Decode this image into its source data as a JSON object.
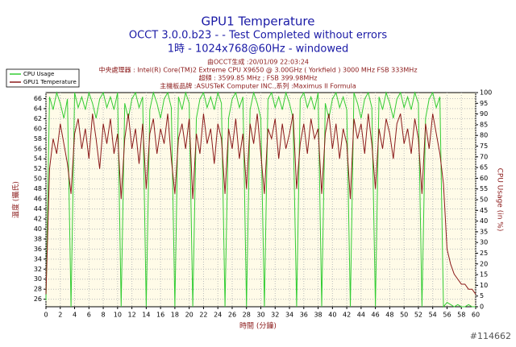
{
  "chart_data": {
    "type": "line",
    "title": "GPU1 Temperature",
    "subtitle": [
      "OCCT 3.0.0.b23 -  - Test Completed without errors",
      "1時 - 1024x768@60Hz - windowed"
    ],
    "info": [
      "由OCCT生成 :20/01/09 22:03:24",
      "中央處理器 : Intel(R) Core(TM)2 Extreme CPU X9650 @ 3.00GHz ( Yorkfield ) 3000 MHz FSB 333MHz",
      "超頻 : 3599.85 MHz ; FSB 399.98MHz",
      "主機板品牌 :ASUSTeK Computer INC.,系列 :Maximus II Formula"
    ],
    "xlabel": "時間 (分鐘)",
    "ylabel": "溫度 (攝氏)",
    "y2label": "CPU Usage (in %)",
    "watermark": "#114662",
    "xlim": [
      0,
      60
    ],
    "xticks": [
      0,
      2,
      4,
      6,
      8,
      10,
      12,
      14,
      16,
      18,
      20,
      22,
      24,
      26,
      28,
      30,
      32,
      34,
      36,
      38,
      40,
      42,
      44,
      46,
      48,
      50,
      52,
      54,
      56,
      58,
      60
    ],
    "ylim": [
      24.5,
      67.2
    ],
    "yticks": [
      26,
      28,
      30,
      32,
      34,
      36,
      38,
      40,
      42,
      44,
      46,
      48,
      50,
      52,
      54,
      56,
      58,
      60,
      62,
      64,
      66
    ],
    "y2lim": [
      0,
      100
    ],
    "y2ticks": [
      0,
      5,
      10,
      15,
      20,
      25,
      30,
      35,
      40,
      45,
      50,
      55,
      60,
      65,
      70,
      75,
      80,
      85,
      90,
      95,
      100
    ],
    "grid": true,
    "legend": "top-left",
    "x": [
      0,
      0.5,
      1,
      1.5,
      2,
      2.5,
      3,
      3.5,
      4,
      4.5,
      5,
      5.5,
      6,
      6.5,
      7,
      7.5,
      8,
      8.5,
      9,
      9.5,
      10,
      10.5,
      11,
      11.5,
      12,
      12.5,
      13,
      13.5,
      14,
      14.5,
      15,
      15.5,
      16,
      16.5,
      17,
      17.5,
      18,
      18.5,
      19,
      19.5,
      20,
      20.5,
      21,
      21.5,
      22,
      22.5,
      23,
      23.5,
      24,
      24.5,
      25,
      25.5,
      26,
      26.5,
      27,
      27.5,
      28,
      28.5,
      29,
      29.5,
      30,
      30.5,
      31,
      31.5,
      32,
      32.5,
      33,
      33.5,
      34,
      34.5,
      35,
      35.5,
      36,
      36.5,
      37,
      37.5,
      38,
      38.5,
      39,
      39.5,
      40,
      40.5,
      41,
      41.5,
      42,
      42.5,
      43,
      43.5,
      44,
      44.5,
      45,
      45.5,
      46,
      46.5,
      47,
      47.5,
      48,
      48.5,
      49,
      49.5,
      50,
      50.5,
      51,
      51.5,
      52,
      52.5,
      53,
      53.5,
      54,
      54.5,
      55,
      55.5,
      56,
      56.5,
      57,
      57.5,
      58,
      58.5,
      59,
      59.5,
      60
    ],
    "series": [
      {
        "name": "CPU Usage",
        "color": "#33cc33",
        "axis": "y2",
        "values": [
          3,
          98,
          92,
          100,
          95,
          88,
          97,
          0,
          100,
          93,
          98,
          92,
          100,
          95,
          88,
          97,
          100,
          93,
          98,
          92,
          100,
          0,
          95,
          88,
          97,
          100,
          93,
          98,
          0,
          92,
          100,
          95,
          88,
          97,
          100,
          93,
          0,
          98,
          92,
          100,
          95,
          0,
          88,
          97,
          100,
          93,
          98,
          92,
          100,
          95,
          0,
          88,
          97,
          100,
          93,
          98,
          0,
          92,
          100,
          95,
          88,
          0,
          97,
          100,
          93,
          98,
          92,
          100,
          95,
          88,
          0,
          97,
          100,
          93,
          98,
          92,
          100,
          0,
          95,
          88,
          97,
          100,
          93,
          98,
          92,
          0,
          100,
          95,
          88,
          97,
          100,
          93,
          0,
          98,
          92,
          100,
          95,
          88,
          97,
          100,
          93,
          98,
          92,
          100,
          95,
          0,
          88,
          97,
          100,
          93,
          98,
          0,
          2,
          1,
          0,
          1,
          0,
          0,
          1,
          0,
          0
        ]
      },
      {
        "name": "GPU1 Temperature",
        "color": "#8b1a1a",
        "values": [
          27,
          52,
          58,
          55,
          61,
          57,
          53,
          47,
          59,
          62,
          56,
          60,
          54,
          63,
          58,
          52,
          61,
          57,
          62,
          55,
          59,
          46,
          58,
          63,
          56,
          60,
          53,
          61,
          48,
          59,
          62,
          55,
          60,
          57,
          63,
          54,
          47,
          58,
          61,
          56,
          62,
          46,
          59,
          55,
          63,
          57,
          60,
          53,
          61,
          58,
          47,
          60,
          56,
          62,
          54,
          59,
          48,
          61,
          57,
          63,
          55,
          47,
          60,
          58,
          62,
          54,
          61,
          56,
          59,
          63,
          48,
          57,
          61,
          55,
          62,
          58,
          60,
          47,
          59,
          63,
          56,
          61,
          54,
          60,
          57,
          46,
          62,
          58,
          61,
          55,
          63,
          57,
          48,
          60,
          56,
          62,
          59,
          54,
          61,
          63,
          57,
          60,
          55,
          62,
          58,
          47,
          61,
          56,
          63,
          59,
          55,
          49,
          36,
          33,
          31,
          30,
          29,
          29,
          28,
          28,
          27
        ]
      }
    ]
  }
}
